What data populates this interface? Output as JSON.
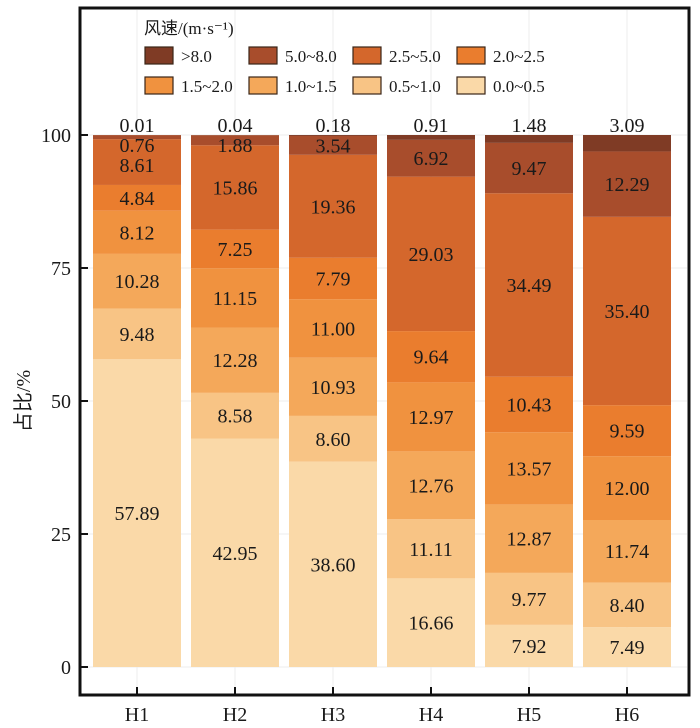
{
  "chart_data": {
    "type": "bar",
    "stacked": true,
    "title": "",
    "xlabel": "",
    "ylabel": "占比/%",
    "ylim": [
      0,
      100
    ],
    "yticks": [
      0,
      25,
      50,
      75,
      100
    ],
    "grid": true,
    "legend_title": "风速/(m·s⁻¹)",
    "legend_position": "top",
    "categories": [
      "H1",
      "H2",
      "H3",
      "H4",
      "H5",
      "H6"
    ],
    "series": [
      {
        "name": "0.0~0.5",
        "color": "#fad9a8",
        "values": [
          57.89,
          42.95,
          38.6,
          16.66,
          7.92,
          7.49
        ]
      },
      {
        "name": "0.5~1.0",
        "color": "#f8c485",
        "values": [
          9.48,
          8.58,
          8.6,
          11.11,
          9.77,
          8.4
        ]
      },
      {
        "name": "1.0~1.5",
        "color": "#f4a85a",
        "values": [
          10.28,
          12.28,
          10.93,
          12.76,
          12.87,
          11.74
        ]
      },
      {
        "name": "1.5~2.0",
        "color": "#f0923f",
        "values": [
          8.12,
          11.15,
          11.0,
          12.97,
          13.57,
          12.0
        ]
      },
      {
        "name": "2.0~2.5",
        "color": "#ea7d2e",
        "values": [
          4.84,
          7.25,
          7.79,
          9.64,
          10.43,
          9.59
        ]
      },
      {
        "name": "2.5~5.0",
        "color": "#d4672c",
        "values": [
          8.61,
          15.86,
          19.36,
          29.03,
          34.49,
          35.4
        ]
      },
      {
        "name": "5.0~8.0",
        "color": "#a84d2c",
        "values": [
          0.76,
          1.88,
          3.54,
          6.92,
          9.47,
          12.29
        ]
      },
      {
        "name": ">8.0",
        "color": "#7f3b25",
        "values": [
          0.01,
          0.04,
          0.18,
          0.91,
          1.48,
          3.09
        ]
      }
    ],
    "value_labels": {
      "0.0~0.5": [
        "57.89",
        "42.95",
        "38.60",
        "16.66",
        "7.92",
        "7.49"
      ],
      "0.5~1.0": [
        "9.48",
        "8.58",
        "8.60",
        "11.11",
        "9.77",
        "8.40"
      ],
      "1.0~1.5": [
        "10.28",
        "12.28",
        "10.93",
        "12.76",
        "12.87",
        "11.74"
      ],
      "1.5~2.0": [
        "8.12",
        "11.15",
        "11.00",
        "12.97",
        "13.57",
        "12.00"
      ],
      "2.0~2.5": [
        "4.84",
        "7.25",
        "7.79",
        "9.64",
        "10.43",
        "9.59"
      ],
      "2.5~5.0": [
        "8.61",
        "15.86",
        "19.36",
        "29.03",
        "34.49",
        "35.40"
      ],
      "5.0~8.0": [
        "0.76",
        "1.88",
        "3.54",
        "6.92",
        "9.47",
        "12.29"
      ],
      ">8.0": [
        "0.01",
        "0.04",
        "0.18",
        "0.91",
        "1.48",
        "3.09"
      ]
    },
    "legend_order": [
      ">8.0",
      "5.0~8.0",
      "2.5~5.0",
      "2.0~2.5",
      "1.5~2.0",
      "1.0~1.5",
      "0.5~1.0",
      "0.0~0.5"
    ]
  }
}
